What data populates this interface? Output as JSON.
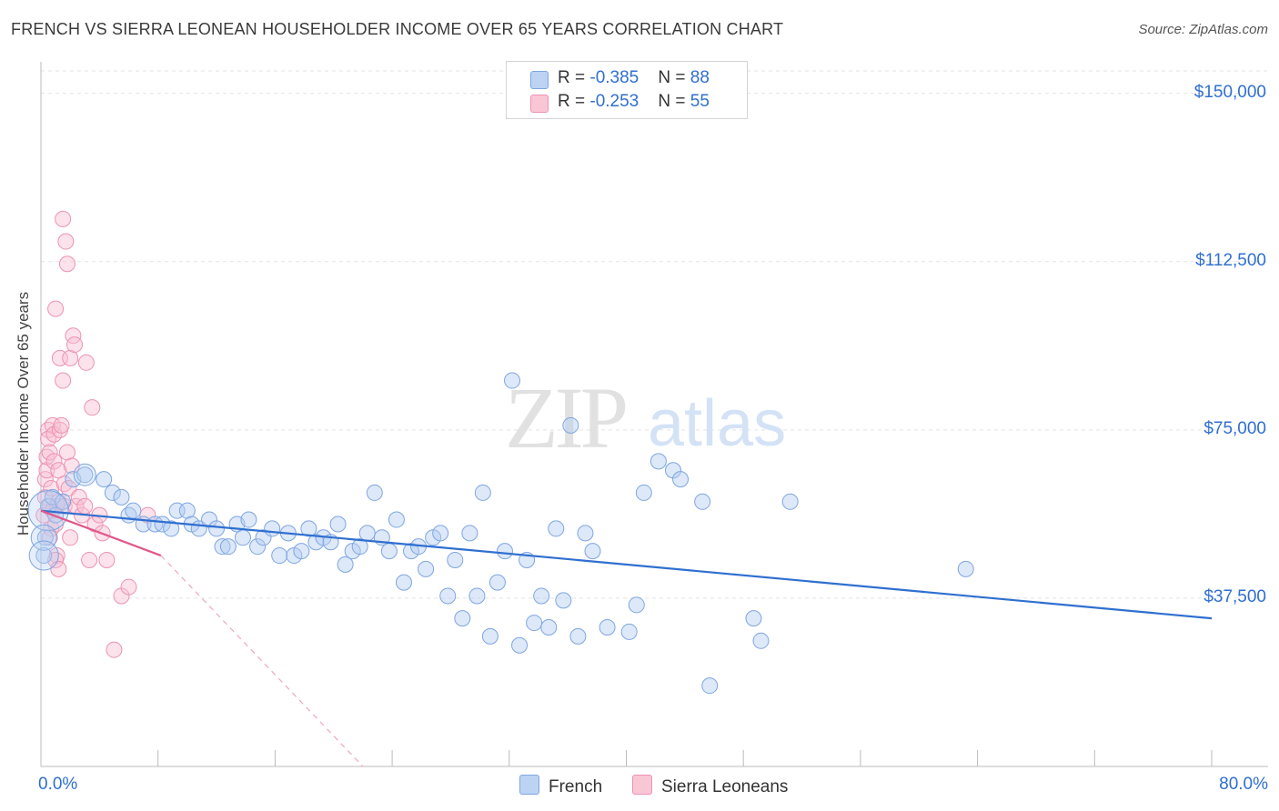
{
  "title": "FRENCH VS SIERRA LEONEAN HOUSEHOLDER INCOME OVER 65 YEARS CORRELATION CHART",
  "source": "Source: ZipAtlas.com",
  "watermark": {
    "zip": "ZIP",
    "atlas": "atlas"
  },
  "legend_top": [
    {
      "r_label": "R = ",
      "r_value": "-0.385",
      "n_label": "N = ",
      "n_value": "88"
    },
    {
      "r_label": "R = ",
      "r_value": "-0.253",
      "n_label": "N = ",
      "n_value": "55"
    }
  ],
  "chart_data": {
    "type": "scatter",
    "title": "FRENCH VS SIERRA LEONEAN HOUSEHOLDER INCOME OVER 65 YEARS CORRELATION CHART",
    "xlabel": "",
    "ylabel": "Householder Income Over 65 years",
    "xlim": [
      0,
      80
    ],
    "ylim": [
      0,
      155000
    ],
    "x_tick_labels": [
      "0.0%",
      "80.0%"
    ],
    "y_ticks": [
      37500,
      75000,
      112500,
      150000
    ],
    "y_tick_labels": [
      "$37,500",
      "$75,000",
      "$112,500",
      "$150,000"
    ],
    "grid": true,
    "legend_position": "bottom",
    "colors": {
      "French": "#5b8fd6",
      "Sierra Leoneans": "#e87aa0",
      "french_line": "#2f6fd0",
      "sl_line": "#e0588a"
    },
    "series": [
      {
        "name": "French",
        "trend": {
          "x": [
            0,
            80
          ],
          "y": [
            57000,
            33000
          ]
        },
        "points": [
          [
            0.2,
            47000
          ],
          [
            0.3,
            51000
          ],
          [
            0.5,
            58000
          ],
          [
            0.8,
            60000
          ],
          [
            1.0,
            56000
          ],
          [
            1.5,
            59000
          ],
          [
            2.2,
            64000
          ],
          [
            3.0,
            65000
          ],
          [
            4.3,
            64000
          ],
          [
            4.9,
            61000
          ],
          [
            5.5,
            60000
          ],
          [
            6.0,
            56000
          ],
          [
            6.3,
            57000
          ],
          [
            7.0,
            54000
          ],
          [
            7.8,
            54000
          ],
          [
            8.3,
            54000
          ],
          [
            8.9,
            53000
          ],
          [
            9.3,
            57000
          ],
          [
            10.0,
            57000
          ],
          [
            10.3,
            54000
          ],
          [
            10.8,
            53000
          ],
          [
            11.5,
            55000
          ],
          [
            12.0,
            53000
          ],
          [
            12.4,
            49000
          ],
          [
            12.8,
            49000
          ],
          [
            13.4,
            54000
          ],
          [
            13.8,
            51000
          ],
          [
            14.2,
            55000
          ],
          [
            14.8,
            49000
          ],
          [
            15.2,
            51000
          ],
          [
            15.8,
            53000
          ],
          [
            16.3,
            47000
          ],
          [
            16.9,
            52000
          ],
          [
            17.3,
            47000
          ],
          [
            17.8,
            48000
          ],
          [
            18.3,
            53000
          ],
          [
            18.8,
            50000
          ],
          [
            19.3,
            51000
          ],
          [
            19.8,
            50000
          ],
          [
            20.3,
            54000
          ],
          [
            20.8,
            45000
          ],
          [
            21.3,
            48000
          ],
          [
            21.8,
            49000
          ],
          [
            22.3,
            52000
          ],
          [
            22.8,
            61000
          ],
          [
            23.3,
            51000
          ],
          [
            23.8,
            48000
          ],
          [
            24.3,
            55000
          ],
          [
            24.8,
            41000
          ],
          [
            25.3,
            48000
          ],
          [
            25.8,
            49000
          ],
          [
            26.3,
            44000
          ],
          [
            26.8,
            51000
          ],
          [
            27.3,
            52000
          ],
          [
            27.8,
            38000
          ],
          [
            28.3,
            46000
          ],
          [
            28.8,
            33000
          ],
          [
            29.3,
            52000
          ],
          [
            29.8,
            38000
          ],
          [
            30.2,
            61000
          ],
          [
            30.7,
            29000
          ],
          [
            31.2,
            41000
          ],
          [
            31.7,
            48000
          ],
          [
            32.2,
            86000
          ],
          [
            32.7,
            27000
          ],
          [
            33.2,
            46000
          ],
          [
            33.7,
            32000
          ],
          [
            34.2,
            38000
          ],
          [
            34.7,
            31000
          ],
          [
            35.2,
            53000
          ],
          [
            35.7,
            37000
          ],
          [
            36.2,
            76000
          ],
          [
            36.7,
            29000
          ],
          [
            37.2,
            52000
          ],
          [
            37.7,
            48000
          ],
          [
            38.7,
            31000
          ],
          [
            40.2,
            30000
          ],
          [
            40.7,
            36000
          ],
          [
            41.2,
            61000
          ],
          [
            42.2,
            68000
          ],
          [
            43.2,
            66000
          ],
          [
            43.7,
            64000
          ],
          [
            45.2,
            59000
          ],
          [
            48.7,
            33000
          ],
          [
            49.2,
            28000
          ],
          [
            51.2,
            59000
          ],
          [
            63.2,
            44000
          ],
          [
            45.7,
            18000
          ]
        ]
      },
      {
        "name": "Sierra Leoneans",
        "trend": {
          "x": [
            0,
            8.2
          ],
          "y": [
            57000,
            47000
          ],
          "dashed_to": {
            "x": 22,
            "y": 0
          }
        },
        "points": [
          [
            0.2,
            56000
          ],
          [
            0.3,
            60000
          ],
          [
            0.3,
            64000
          ],
          [
            0.4,
            66000
          ],
          [
            0.4,
            69000
          ],
          [
            0.5,
            75000
          ],
          [
            0.5,
            73000
          ],
          [
            0.6,
            70000
          ],
          [
            0.6,
            58000
          ],
          [
            0.7,
            62000
          ],
          [
            0.7,
            53000
          ],
          [
            0.8,
            57000
          ],
          [
            0.8,
            76000
          ],
          [
            0.9,
            68000
          ],
          [
            0.9,
            74000
          ],
          [
            1.0,
            102000
          ],
          [
            1.0,
            54000
          ],
          [
            1.1,
            47000
          ],
          [
            1.1,
            58000
          ],
          [
            1.2,
            59000
          ],
          [
            1.2,
            66000
          ],
          [
            1.3,
            91000
          ],
          [
            1.3,
            75000
          ],
          [
            1.4,
            76000
          ],
          [
            1.5,
            122000
          ],
          [
            1.5,
            86000
          ],
          [
            1.6,
            63000
          ],
          [
            1.6,
            58000
          ],
          [
            1.7,
            117000
          ],
          [
            1.8,
            112000
          ],
          [
            1.8,
            70000
          ],
          [
            1.9,
            62000
          ],
          [
            2.0,
            91000
          ],
          [
            2.1,
            67000
          ],
          [
            2.2,
            96000
          ],
          [
            2.3,
            94000
          ],
          [
            2.4,
            58000
          ],
          [
            2.6,
            60000
          ],
          [
            2.8,
            56000
          ],
          [
            3.0,
            58000
          ],
          [
            3.1,
            90000
          ],
          [
            3.3,
            46000
          ],
          [
            3.5,
            80000
          ],
          [
            3.7,
            54000
          ],
          [
            4.0,
            56000
          ],
          [
            4.2,
            52000
          ],
          [
            4.5,
            46000
          ],
          [
            5.0,
            26000
          ],
          [
            5.5,
            38000
          ],
          [
            6.0,
            40000
          ],
          [
            1.0,
            46000
          ],
          [
            1.2,
            44000
          ],
          [
            0.6,
            51000
          ],
          [
            2.0,
            51000
          ],
          [
            7.3,
            56000
          ]
        ]
      }
    ]
  },
  "legend_bottom": [
    "French",
    "Sierra Leoneans"
  ]
}
